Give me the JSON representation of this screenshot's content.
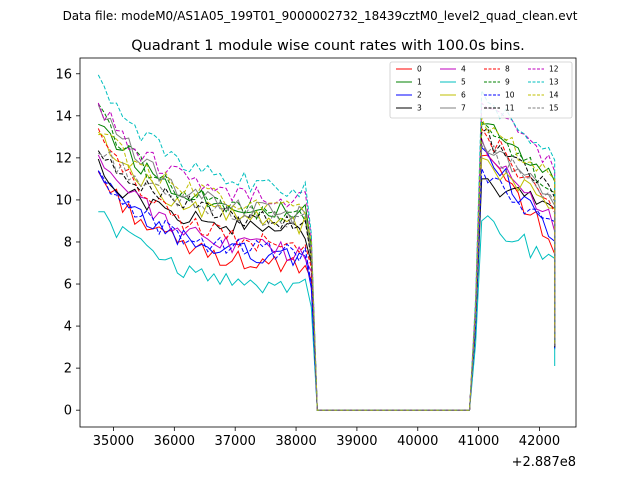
{
  "chart_data": {
    "type": "line",
    "suptitle": "Data file: modeM0/AS1A05_199T01_9000002732_18439cztM0_level2_quad_clean.evt",
    "title": "Quadrant 1 module wise count rates with 100.0s bins.",
    "xlabel": "",
    "ylabel": "",
    "x_offset_label": "+2.887e8",
    "xlim": [
      34450,
      42600
    ],
    "ylim": [
      -0.8,
      16.75
    ],
    "xticks": [
      35000,
      36000,
      37000,
      38000,
      39000,
      40000,
      41000,
      42000
    ],
    "yticks": [
      0,
      2,
      4,
      6,
      8,
      10,
      12,
      14,
      16
    ],
    "xtick_labels": [
      "35000",
      "36000",
      "37000",
      "38000",
      "39000",
      "40000",
      "41000",
      "42000"
    ],
    "ytick_labels": [
      "0",
      "2",
      "4",
      "6",
      "8",
      "10",
      "12",
      "14",
      "16"
    ],
    "grid": false,
    "legend_location": "top-right",
    "legend_columns": 4,
    "x_start": 34750,
    "bin_size": 100,
    "segment_1_range": [
      34750,
      38150
    ],
    "gap_range": [
      38350,
      40850
    ],
    "segment_2_range": [
      41050,
      42250
    ],
    "series": [
      {
        "name": "0",
        "color": "#ff0000",
        "style": "solid",
        "start": 11.3,
        "end": 6.6,
        "drop": 6.2,
        "peak": 12.1,
        "final": 7.9,
        "last": 3.1,
        "seed": 3
      },
      {
        "name": "1",
        "color": "#008000",
        "style": "solid",
        "start": 13.9,
        "end": 9.2,
        "drop": 7.8,
        "peak": 13.6,
        "final": 10.8,
        "last": 3.1,
        "seed": 7
      },
      {
        "name": "2",
        "color": "#0000ff",
        "style": "solid",
        "start": 11.1,
        "end": 7.1,
        "drop": 5.8,
        "peak": 12.5,
        "final": 8.1,
        "last": 2.9,
        "seed": 11
      },
      {
        "name": "3",
        "color": "#000000",
        "style": "solid",
        "start": 11.5,
        "end": 8.4,
        "drop": 7.0,
        "peak": 11.0,
        "final": 9.5,
        "last": 3.0,
        "seed": 13
      },
      {
        "name": "4",
        "color": "#bf00bf",
        "style": "solid",
        "start": 12.2,
        "end": 7.3,
        "drop": 6.6,
        "peak": 12.9,
        "final": 8.8,
        "last": 3.0,
        "seed": 17
      },
      {
        "name": "5",
        "color": "#00bfbf",
        "style": "solid",
        "start": 9.6,
        "end": 5.7,
        "drop": 4.9,
        "peak": 9.0,
        "final": 7.1,
        "last": 2.1,
        "seed": 19
      },
      {
        "name": "6",
        "color": "#bfbf00",
        "style": "solid",
        "start": 13.3,
        "end": 8.6,
        "drop": 7.2,
        "peak": 12.0,
        "final": 9.6,
        "last": 3.0,
        "seed": 23
      },
      {
        "name": "7",
        "color": "#808080",
        "style": "solid",
        "start": 14.6,
        "end": 9.0,
        "drop": 7.4,
        "peak": 12.8,
        "final": 9.8,
        "last": 3.2,
        "seed": 29
      },
      {
        "name": "8",
        "color": "#ff0000",
        "style": "dashed",
        "start": 13.2,
        "end": 7.5,
        "drop": 6.8,
        "peak": 13.4,
        "final": 9.5,
        "last": 3.0,
        "seed": 31
      },
      {
        "name": "9",
        "color": "#008000",
        "style": "dashed",
        "start": 14.2,
        "end": 9.0,
        "drop": 7.8,
        "peak": 13.7,
        "final": 10.5,
        "last": 3.1,
        "seed": 37
      },
      {
        "name": "10",
        "color": "#0000ff",
        "style": "dashed",
        "start": 11.0,
        "end": 7.3,
        "drop": 6.0,
        "peak": 11.5,
        "final": 8.5,
        "last": 2.9,
        "seed": 41
      },
      {
        "name": "11",
        "color": "#000000",
        "style": "dashed",
        "start": 12.6,
        "end": 8.8,
        "drop": 7.2,
        "peak": 13.2,
        "final": 10.2,
        "last": 3.0,
        "seed": 43
      },
      {
        "name": "12",
        "color": "#bf00bf",
        "style": "dashed",
        "start": 14.6,
        "end": 9.8,
        "drop": 8.2,
        "peak": 14.6,
        "final": 11.7,
        "last": 3.3,
        "seed": 47
      },
      {
        "name": "13",
        "color": "#00bfbf",
        "style": "dashed",
        "start": 15.9,
        "end": 10.3,
        "drop": 8.4,
        "peak": 15.2,
        "final": 11.8,
        "last": 3.2,
        "seed": 53
      },
      {
        "name": "14",
        "color": "#bfbf00",
        "style": "dashed",
        "start": 13.4,
        "end": 9.5,
        "drop": 8.0,
        "peak": 13.9,
        "final": 10.8,
        "last": 3.1,
        "seed": 59
      },
      {
        "name": "15",
        "color": "#808080",
        "style": "dashed",
        "start": 12.6,
        "end": 8.9,
        "drop": 7.5,
        "peak": 12.6,
        "final": 10.0,
        "last": 3.0,
        "seed": 61
      }
    ]
  }
}
